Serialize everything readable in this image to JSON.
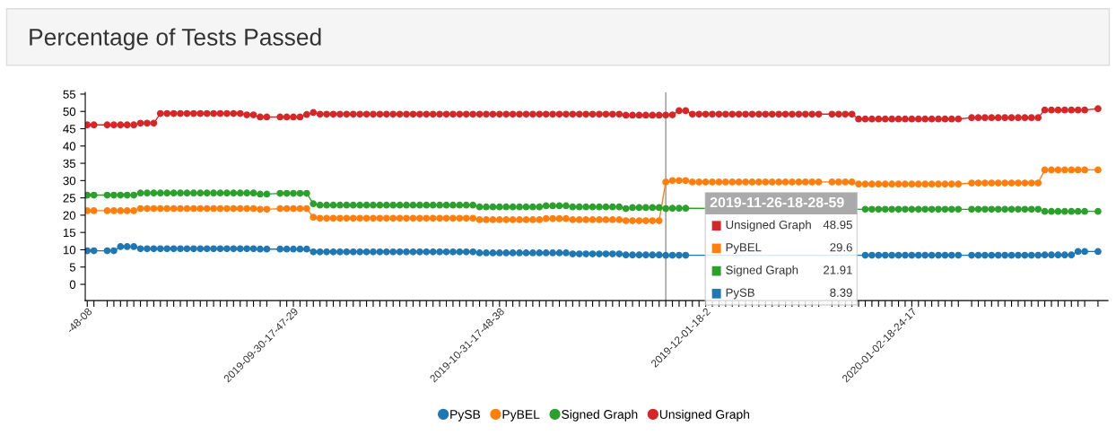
{
  "chart_data": {
    "type": "line",
    "title": "Percentage of Tests Passed",
    "categories": [
      "-48-08",
      null,
      null,
      null,
      null,
      null,
      null,
      null,
      null,
      null,
      null,
      null,
      null,
      null,
      null,
      null,
      null,
      null,
      null,
      null,
      null,
      null,
      null,
      null,
      null,
      null,
      null,
      null,
      null,
      null,
      null,
      "2019-09-30-17-47-29",
      null,
      null,
      null,
      null,
      null,
      null,
      null,
      null,
      null,
      null,
      null,
      null,
      null,
      null,
      null,
      null,
      null,
      null,
      null,
      null,
      null,
      null,
      null,
      null,
      null,
      null,
      null,
      null,
      null,
      null,
      "2019-10-31-17-48-38",
      null,
      null,
      null,
      null,
      null,
      null,
      null,
      null,
      null,
      null,
      null,
      null,
      null,
      null,
      null,
      null,
      null,
      null,
      null,
      null,
      null,
      null,
      null,
      null,
      null,
      null,
      null,
      null,
      null,
      null,
      "2019-12-01-18-2",
      null,
      null,
      null,
      null,
      null,
      null,
      null,
      null,
      null,
      null,
      null,
      null,
      null,
      null,
      null,
      null,
      null,
      null,
      null,
      null,
      null,
      null,
      null,
      null,
      null,
      null,
      null,
      null,
      null,
      null,
      "2020-01-02-18-24-17",
      null,
      null,
      null,
      null,
      null,
      null,
      null,
      null,
      null,
      null,
      null,
      null,
      null,
      null,
      null,
      null,
      null,
      null,
      null,
      null,
      null,
      null,
      null,
      null,
      null,
      null,
      null,
      null
    ],
    "series": [
      {
        "name": "PySB",
        "color": "#1f77b4",
        "values": [
          9.7,
          9.7,
          null,
          9.7,
          9.7,
          10.9,
          10.9,
          10.9,
          10.3,
          10.3,
          10.3,
          10.3,
          10.3,
          10.3,
          10.3,
          10.3,
          10.3,
          10.3,
          10.3,
          10.3,
          10.3,
          10.3,
          10.3,
          10.3,
          10.3,
          10.3,
          10.2,
          10.2,
          null,
          10.2,
          10.2,
          10.2,
          10.2,
          10.2,
          9.4,
          9.4,
          9.4,
          9.4,
          9.4,
          9.4,
          9.4,
          9.4,
          9.4,
          9.4,
          9.4,
          9.4,
          9.4,
          9.4,
          9.4,
          9.4,
          9.4,
          9.4,
          9.4,
          9.4,
          9.4,
          9.4,
          9.4,
          9.4,
          9.4,
          9.1,
          9.1,
          9.1,
          9.1,
          9.1,
          9.1,
          9.1,
          9.1,
          9.1,
          9.1,
          9.1,
          9.1,
          9.1,
          9.1,
          8.8,
          8.8,
          8.8,
          8.8,
          8.8,
          8.8,
          8.8,
          8.8,
          8.5,
          8.5,
          8.5,
          8.5,
          8.5,
          8.5,
          8.39,
          8.4,
          8.4,
          8.4,
          null,
          null,
          null,
          null,
          null,
          null,
          null,
          null,
          null,
          null,
          null,
          null,
          null,
          null,
          null,
          null,
          null,
          null,
          null,
          null,
          null,
          null,
          null,
          null,
          null,
          null,
          8.4,
          8.4,
          8.4,
          8.4,
          8.4,
          8.4,
          8.4,
          8.4,
          8.4,
          8.4,
          8.4,
          8.4,
          8.4,
          8.4,
          8.4,
          null,
          8.4,
          8.4,
          8.4,
          8.4,
          8.4,
          8.4,
          8.4,
          8.4,
          8.4,
          8.4,
          8.4,
          8.5,
          8.5,
          8.5,
          8.5,
          8.5,
          9.5,
          9.5,
          null,
          9.5
        ]
      },
      {
        "name": "PyBEL",
        "color": "#ff7f0e",
        "values": [
          21.3,
          21.3,
          null,
          21.3,
          21.3,
          21.3,
          21.3,
          21.3,
          21.9,
          21.9,
          21.9,
          21.9,
          21.9,
          21.9,
          21.9,
          21.9,
          21.9,
          21.9,
          21.9,
          21.9,
          21.9,
          21.9,
          21.9,
          21.9,
          21.9,
          21.9,
          21.7,
          21.7,
          null,
          21.9,
          21.9,
          21.9,
          21.9,
          21.9,
          19.4,
          19.1,
          19.1,
          19.1,
          19.1,
          19.1,
          19.1,
          19.1,
          19.1,
          19.1,
          19.1,
          19.1,
          19.1,
          19.1,
          19.1,
          19.1,
          19.1,
          19.1,
          19.1,
          19.1,
          19.1,
          19.1,
          19.1,
          19.1,
          19.1,
          18.7,
          18.7,
          18.7,
          18.7,
          18.7,
          18.7,
          18.7,
          18.7,
          18.7,
          18.7,
          19.0,
          19.0,
          19.0,
          19.0,
          18.7,
          18.7,
          18.7,
          18.7,
          18.7,
          18.7,
          18.7,
          18.7,
          18.4,
          18.4,
          18.4,
          18.4,
          18.4,
          18.4,
          29.6,
          30.0,
          30.0,
          30.0,
          29.6,
          29.6,
          29.6,
          29.6,
          29.6,
          29.6,
          29.6,
          29.6,
          29.6,
          29.6,
          29.6,
          29.6,
          29.6,
          29.6,
          29.6,
          29.6,
          29.6,
          29.6,
          29.6,
          29.6,
          null,
          29.6,
          29.6,
          29.6,
          29.6,
          29.0,
          29.0,
          29.0,
          29.0,
          29.0,
          29.0,
          29.0,
          29.0,
          29.0,
          29.0,
          29.0,
          29.0,
          29.0,
          29.0,
          29.0,
          29.0,
          null,
          29.3,
          29.3,
          29.3,
          29.3,
          29.3,
          29.3,
          29.3,
          29.3,
          29.3,
          29.3,
          29.3,
          33.1,
          33.1,
          33.1,
          33.1,
          33.1,
          33.1,
          33.1,
          null,
          33.1
        ]
      },
      {
        "name": "Signed Graph",
        "color": "#2ca02c",
        "values": [
          25.8,
          25.8,
          null,
          25.8,
          25.8,
          25.8,
          25.8,
          25.8,
          26.4,
          26.4,
          26.4,
          26.4,
          26.4,
          26.4,
          26.4,
          26.4,
          26.4,
          26.4,
          26.4,
          26.4,
          26.4,
          26.4,
          26.4,
          26.4,
          26.4,
          26.4,
          26.1,
          26.1,
          null,
          26.3,
          26.3,
          26.3,
          26.3,
          26.3,
          23.3,
          22.9,
          22.9,
          22.9,
          22.9,
          22.9,
          22.9,
          22.9,
          22.9,
          22.9,
          22.9,
          22.9,
          22.9,
          22.9,
          22.9,
          22.9,
          22.9,
          22.9,
          22.9,
          22.9,
          22.9,
          22.9,
          22.9,
          22.9,
          22.9,
          22.4,
          22.4,
          22.4,
          22.4,
          22.4,
          22.4,
          22.4,
          22.4,
          22.4,
          22.4,
          22.7,
          22.7,
          22.7,
          22.7,
          22.4,
          22.4,
          22.4,
          22.4,
          22.4,
          22.4,
          22.4,
          22.4,
          21.9,
          22.2,
          22.2,
          22.2,
          22.2,
          22.2,
          21.91,
          22.0,
          22.0,
          22.0,
          null,
          null,
          null,
          null,
          null,
          null,
          null,
          null,
          null,
          null,
          null,
          null,
          null,
          null,
          null,
          null,
          null,
          null,
          null,
          null,
          null,
          null,
          null,
          null,
          null,
          null,
          21.7,
          21.7,
          21.7,
          21.7,
          21.7,
          21.7,
          21.7,
          21.7,
          21.7,
          21.7,
          21.7,
          21.7,
          21.7,
          21.7,
          21.7,
          null,
          21.7,
          21.7,
          21.7,
          21.7,
          21.7,
          21.7,
          21.7,
          21.7,
          21.7,
          21.7,
          21.7,
          21.1,
          21.1,
          21.1,
          21.1,
          21.1,
          21.1,
          21.1,
          null,
          21.1
        ]
      },
      {
        "name": "Unsigned Graph",
        "color": "#d62728",
        "values": [
          46.1,
          46.1,
          null,
          46.1,
          46.1,
          46.1,
          46.1,
          46.1,
          46.6,
          46.6,
          46.6,
          49.4,
          49.4,
          49.4,
          49.4,
          49.4,
          49.4,
          49.4,
          49.4,
          49.4,
          49.4,
          49.4,
          49.4,
          49.4,
          49.0,
          49.0,
          48.4,
          48.4,
          null,
          48.4,
          48.4,
          48.4,
          48.4,
          49.1,
          49.7,
          49.2,
          49.2,
          49.2,
          49.2,
          49.2,
          49.2,
          49.2,
          49.2,
          49.2,
          49.2,
          49.2,
          49.2,
          49.2,
          49.2,
          49.2,
          49.2,
          49.2,
          49.2,
          49.2,
          49.2,
          49.2,
          49.2,
          49.2,
          49.2,
          49.2,
          49.2,
          49.2,
          49.2,
          49.2,
          49.2,
          49.2,
          49.2,
          49.2,
          49.2,
          49.2,
          49.2,
          49.2,
          49.2,
          49.2,
          49.2,
          49.2,
          49.2,
          49.2,
          49.2,
          49.2,
          49.2,
          48.9,
          48.9,
          48.9,
          48.9,
          48.9,
          48.9,
          48.95,
          49.0,
          50.2,
          50.2,
          49.2,
          49.2,
          49.2,
          49.2,
          49.2,
          49.2,
          49.2,
          49.2,
          49.2,
          49.2,
          49.2,
          49.2,
          49.2,
          49.2,
          49.2,
          49.2,
          49.2,
          49.2,
          49.2,
          49.2,
          null,
          49.2,
          49.2,
          49.2,
          49.2,
          47.8,
          47.8,
          47.8,
          47.8,
          47.8,
          47.8,
          47.8,
          47.8,
          47.8,
          47.8,
          47.8,
          47.8,
          47.8,
          47.8,
          47.8,
          47.8,
          null,
          48.2,
          48.2,
          48.2,
          48.2,
          48.2,
          48.2,
          48.2,
          48.2,
          48.2,
          48.2,
          48.2,
          50.4,
          50.4,
          50.4,
          50.4,
          50.4,
          50.4,
          50.4,
          null,
          50.8
        ]
      }
    ],
    "ylim": [
      -4.7,
      55.5
    ],
    "yticks": [
      0,
      5,
      10,
      15,
      20,
      25,
      30,
      35,
      40,
      45,
      50,
      55
    ],
    "annotations": [
      "2019-11-26-18-28-59",
      "48.95",
      "29.6",
      "21.91",
      "8.39"
    ],
    "marker": "circle",
    "line_style": "solid",
    "grid": false,
    "legend": "bottom"
  }
}
